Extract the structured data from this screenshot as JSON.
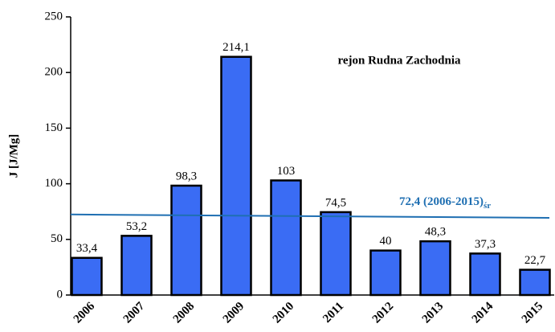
{
  "chart_data": {
    "type": "bar",
    "annotation": "rejon Rudna Zachodnia",
    "y_label": "J [J/Mg]",
    "categories": [
      "2006",
      "2007",
      "2008",
      "2009",
      "2010",
      "2011",
      "2012",
      "2013",
      "2014",
      "2015"
    ],
    "values": [
      33.4,
      53.2,
      98.3,
      214.1,
      103,
      74.5,
      40,
      48.3,
      37.3,
      22.7
    ],
    "value_labels": [
      "33,4",
      "53,2",
      "98,3",
      "214,1",
      "103",
      "74,5",
      "40",
      "48,3",
      "37,3",
      "22,7"
    ],
    "color": "#3a6cf4",
    "ylim": [
      0,
      250
    ],
    "yticks": [
      0,
      50,
      100,
      150,
      200,
      250
    ],
    "grid": false,
    "mean_line": {
      "values": [
        72.4,
        69.4
      ],
      "color": "#1f6fb2",
      "label": "72,4 (2006-2015)",
      "label_sub": "śr"
    }
  }
}
